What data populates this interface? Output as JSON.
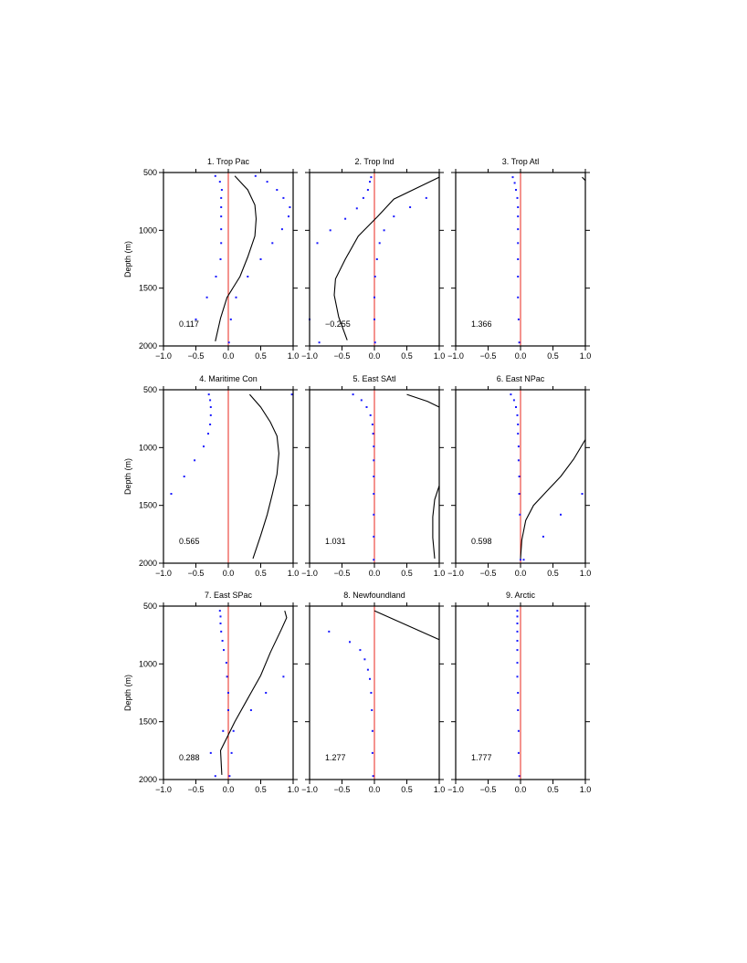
{
  "figure": {
    "ylabel": "Depth (m)",
    "colors": {
      "zero_line": "#e8271c",
      "profile": "#000000",
      "points": "#1a1aff"
    }
  },
  "chart_data": [
    {
      "type": "line",
      "title": "1. Trop Pac",
      "annotation": "0.117",
      "xlim": [
        -1.0,
        1.0
      ],
      "ylim": [
        2000,
        500
      ],
      "xticks": [
        "-1.0",
        "-0.5",
        "0.0",
        "0.5",
        "1.0"
      ],
      "yticks": [
        "500",
        "1000",
        "1500",
        "2000"
      ],
      "line": {
        "x": [
          0.1,
          0.3,
          0.41,
          0.43,
          0.41,
          0.3,
          0.18,
          -0.02,
          -0.12,
          -0.2
        ],
        "y": [
          530,
          650,
          780,
          900,
          1050,
          1230,
          1400,
          1580,
          1760,
          1960
        ]
      },
      "points": {
        "x": [
          -0.2,
          -0.13,
          -0.1,
          -0.11,
          -0.11,
          -0.11,
          -0.11,
          -0.11,
          -0.12,
          -0.19,
          -0.33,
          -0.5,
          0.42,
          0.6,
          0.75,
          0.85,
          0.95,
          0.93,
          0.83,
          0.68,
          0.5,
          0.3,
          0.12,
          0.04,
          0.01
        ],
        "y": [
          530,
          580,
          650,
          720,
          800,
          880,
          990,
          1110,
          1250,
          1400,
          1580,
          1770,
          530,
          580,
          650,
          720,
          800,
          880,
          990,
          1110,
          1250,
          1400,
          1580,
          1770,
          1970
        ]
      }
    },
    {
      "type": "line",
      "title": "2. Trop Ind",
      "annotation": "−0.255",
      "xlim": [
        -1.0,
        1.0
      ],
      "ylim": [
        2000,
        500
      ],
      "xticks": [
        "-1.0",
        "-0.5",
        "0.0",
        "0.5",
        "1.0"
      ],
      "yticks": [
        "500",
        "1000",
        "1500",
        "2000"
      ],
      "line": {
        "x": [
          1.0,
          0.3,
          0.05,
          -0.25,
          -0.45,
          -0.6,
          -0.62,
          -0.55,
          -0.42
        ],
        "y": [
          540,
          730,
          880,
          1050,
          1250,
          1420,
          1560,
          1750,
          1950
        ]
      },
      "points": {
        "x": [
          -0.05,
          -0.07,
          -0.1,
          -0.17,
          -0.27,
          -0.45,
          -0.68,
          -0.88,
          0.8,
          0.55,
          0.3,
          0.15,
          0.08,
          0.04,
          0.01,
          0.0,
          0.0,
          0.01,
          -1.0,
          -0.85
        ],
        "y": [
          540,
          580,
          650,
          720,
          810,
          900,
          1000,
          1110,
          720,
          800,
          880,
          1000,
          1110,
          1250,
          1400,
          1580,
          1770,
          1970,
          1770,
          1970
        ]
      }
    },
    {
      "type": "line",
      "title": "3. Trop Atl",
      "annotation": "1.366",
      "xlim": [
        -1.0,
        1.0
      ],
      "ylim": [
        2000,
        500
      ],
      "xticks": [
        "-1.0",
        "-0.5",
        "0.0",
        "0.5",
        "1.0"
      ],
      "yticks": [
        "500",
        "1000",
        "1500",
        "2000"
      ],
      "line": {
        "x": [
          0.95,
          1.0
        ],
        "y": [
          540,
          570
        ]
      },
      "points": {
        "x": [
          -0.12,
          -0.09,
          -0.07,
          -0.05,
          -0.04,
          -0.04,
          -0.04,
          -0.04,
          -0.04,
          -0.04,
          -0.04,
          -0.03,
          -0.02
        ],
        "y": [
          540,
          590,
          650,
          720,
          800,
          880,
          990,
          1110,
          1250,
          1400,
          1580,
          1770,
          1970
        ]
      }
    },
    {
      "type": "line",
      "title": "4. Maritime Con",
      "annotation": "0.565",
      "xlim": [
        -1.0,
        1.0
      ],
      "ylim": [
        2000,
        500
      ],
      "xticks": [
        "-1.0",
        "-0.5",
        "0.0",
        "0.5",
        "1.0"
      ],
      "yticks": [
        "500",
        "1000",
        "1500",
        "2000"
      ],
      "line": {
        "x": [
          0.33,
          0.5,
          0.65,
          0.75,
          0.78,
          0.75,
          0.68,
          0.6,
          0.5,
          0.38
        ],
        "y": [
          540,
          650,
          780,
          900,
          1050,
          1230,
          1400,
          1580,
          1760,
          1960
        ]
      },
      "points": {
        "x": [
          -0.3,
          -0.28,
          -0.27,
          -0.27,
          -0.28,
          -0.31,
          -0.38,
          -0.52,
          -0.68,
          -0.88,
          0.98
        ],
        "y": [
          540,
          590,
          650,
          720,
          800,
          880,
          990,
          1110,
          1250,
          1400,
          540
        ]
      }
    },
    {
      "type": "line",
      "title": "5. East SAtl",
      "annotation": "1.031",
      "xlim": [
        -1.0,
        1.0
      ],
      "ylim": [
        2000,
        500
      ],
      "xticks": [
        "-1.0",
        "-0.5",
        "0.0",
        "0.5",
        "1.0"
      ],
      "yticks": [
        "500",
        "1000",
        "1500",
        "2000"
      ],
      "line": {
        "x": [
          0.5,
          0.82,
          1.0,
          null,
          1.0,
          0.93,
          0.9,
          0.9,
          0.93
        ],
        "y": [
          540,
          600,
          650,
          null,
          1330,
          1450,
          1600,
          1780,
          1960
        ]
      },
      "points": {
        "x": [
          -0.33,
          -0.2,
          -0.12,
          -0.06,
          -0.03,
          -0.02,
          -0.01,
          -0.01,
          -0.01,
          -0.01,
          -0.01,
          -0.01,
          -0.01
        ],
        "y": [
          540,
          590,
          650,
          720,
          800,
          880,
          990,
          1110,
          1250,
          1400,
          1580,
          1770,
          1970
        ]
      }
    },
    {
      "type": "line",
      "title": "6. East NPac",
      "annotation": "0.598",
      "xlim": [
        -1.0,
        1.0
      ],
      "ylim": [
        2000,
        500
      ],
      "xticks": [
        "-1.0",
        "-0.5",
        "0.0",
        "0.5",
        "1.0"
      ],
      "yticks": [
        "500",
        "1000",
        "1500",
        "2000"
      ],
      "line": {
        "x": [
          1.0,
          0.82,
          0.62,
          0.4,
          0.2,
          0.08,
          0.02,
          0.0
        ],
        "y": [
          930,
          1100,
          1250,
          1380,
          1500,
          1630,
          1800,
          1960
        ]
      },
      "points": {
        "x": [
          -0.15,
          -0.1,
          -0.07,
          -0.05,
          -0.04,
          -0.04,
          -0.03,
          -0.03,
          -0.02,
          -0.02,
          -0.01,
          0.0,
          0.95,
          0.62,
          0.35,
          0.05
        ],
        "y": [
          540,
          590,
          650,
          720,
          800,
          880,
          990,
          1110,
          1250,
          1400,
          1580,
          1970,
          1400,
          1580,
          1770,
          1970
        ]
      }
    },
    {
      "type": "line",
      "title": "7. East SPac",
      "annotation": "0.288",
      "xlim": [
        -1.0,
        1.0
      ],
      "ylim": [
        2000,
        500
      ],
      "xticks": [
        "-1.0",
        "-0.5",
        "0.0",
        "0.5",
        "1.0"
      ],
      "yticks": [
        "500",
        "1000",
        "1500",
        "2000"
      ],
      "line": {
        "x": [
          0.87,
          0.9,
          0.82,
          0.65,
          0.5,
          0.3,
          0.1,
          -0.12,
          -0.1
        ],
        "y": [
          540,
          600,
          700,
          900,
          1100,
          1300,
          1500,
          1750,
          1960
        ]
      },
      "points": {
        "x": [
          -0.13,
          -0.12,
          -0.12,
          -0.11,
          -0.09,
          -0.07,
          -0.03,
          -0.02,
          0.0,
          0.0,
          -0.08,
          -0.27,
          -0.2,
          0.85,
          0.58,
          0.35,
          0.08,
          0.05,
          0.02
        ],
        "y": [
          540,
          590,
          650,
          720,
          800,
          880,
          990,
          1110,
          1250,
          1400,
          1580,
          1770,
          1970,
          1110,
          1250,
          1400,
          1580,
          1770,
          1970
        ]
      }
    },
    {
      "type": "line",
      "title": "8. Newfoundland",
      "annotation": "1.277",
      "xlim": [
        -1.0,
        1.0
      ],
      "ylim": [
        2000,
        500
      ],
      "xticks": [
        "-1.0",
        "-0.5",
        "0.0",
        "0.5",
        "1.0"
      ],
      "yticks": [
        "500",
        "1000",
        "1500",
        "2000"
      ],
      "line": {
        "x": [
          0.0,
          1.0
        ],
        "y": [
          540,
          790
        ]
      },
      "points": {
        "x": [
          -0.7,
          -0.38,
          -0.22,
          -0.15,
          -0.1,
          -0.07,
          -0.05,
          -0.04,
          -0.03,
          -0.03,
          -0.02
        ],
        "y": [
          720,
          810,
          880,
          960,
          1050,
          1130,
          1250,
          1400,
          1580,
          1770,
          1970
        ]
      }
    },
    {
      "type": "line",
      "title": "9. Arctic",
      "annotation": "1.777",
      "xlim": [
        -1.0,
        1.0
      ],
      "ylim": [
        2000,
        500
      ],
      "xticks": [
        "-1.0",
        "-0.5",
        "0.0",
        "0.5",
        "1.0"
      ],
      "yticks": [
        "500",
        "1000",
        "1500",
        "2000"
      ],
      "line": {
        "x": [],
        "y": []
      },
      "points": {
        "x": [
          -0.05,
          -0.05,
          -0.05,
          -0.05,
          -0.05,
          -0.05,
          -0.05,
          -0.05,
          -0.04,
          -0.04,
          -0.03,
          -0.03,
          -0.02
        ],
        "y": [
          540,
          590,
          650,
          720,
          800,
          880,
          990,
          1110,
          1250,
          1400,
          1580,
          1770,
          1970
        ]
      }
    }
  ]
}
